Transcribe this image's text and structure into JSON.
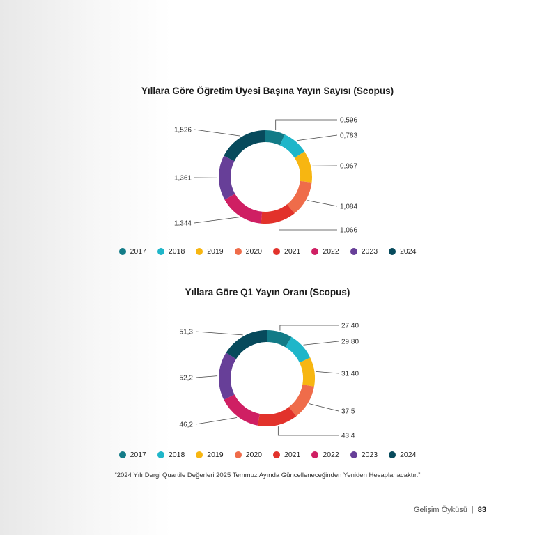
{
  "chart_data": [
    {
      "type": "pie",
      "title": "Yıllara Göre Öğretim Üyesi Başına Yayın Sayısı (Scopus)",
      "categories": [
        "2017",
        "2018",
        "2019",
        "2020",
        "2021",
        "2022",
        "2023",
        "2024"
      ],
      "values": [
        0.596,
        0.783,
        0.967,
        1.084,
        1.066,
        1.344,
        1.361,
        1.526
      ],
      "labels": [
        "0,596",
        "0,783",
        "0,967",
        "1,084",
        "1,066",
        "1,344",
        "1,361",
        "1,526"
      ],
      "colors": [
        "#127b87",
        "#1fb6c9",
        "#f7b611",
        "#ef6c4a",
        "#e2322b",
        "#cf1f63",
        "#673f98",
        "#074a5c"
      ],
      "legend": "bottom"
    },
    {
      "type": "pie",
      "title": "Yıllara Göre Q1 Yayın Oranı (Scopus)",
      "categories": [
        "2017",
        "2018",
        "2019",
        "2020",
        "2021",
        "2022",
        "2023",
        "2024"
      ],
      "values": [
        27.4,
        29.8,
        31.4,
        37.5,
        43.4,
        46.2,
        52.2,
        51.3
      ],
      "labels": [
        "27,40",
        "29,80",
        "31,40",
        "37,5",
        "43,4",
        "46,2",
        "52,2",
        "51,3"
      ],
      "colors": [
        "#127b87",
        "#1fb6c9",
        "#f7b611",
        "#ef6c4a",
        "#e2322b",
        "#cf1f63",
        "#673f98",
        "#074a5c"
      ],
      "legend": "bottom"
    }
  ],
  "note": "“2024 Yılı Dergi Quartile Değerleri 2025 Temmuz Ayında Güncelleneceğinden Yeniden Hesaplanacaktır.”",
  "footer": {
    "section": "Gelişim Öyküsü",
    "separator": "|",
    "page_number": "83"
  }
}
